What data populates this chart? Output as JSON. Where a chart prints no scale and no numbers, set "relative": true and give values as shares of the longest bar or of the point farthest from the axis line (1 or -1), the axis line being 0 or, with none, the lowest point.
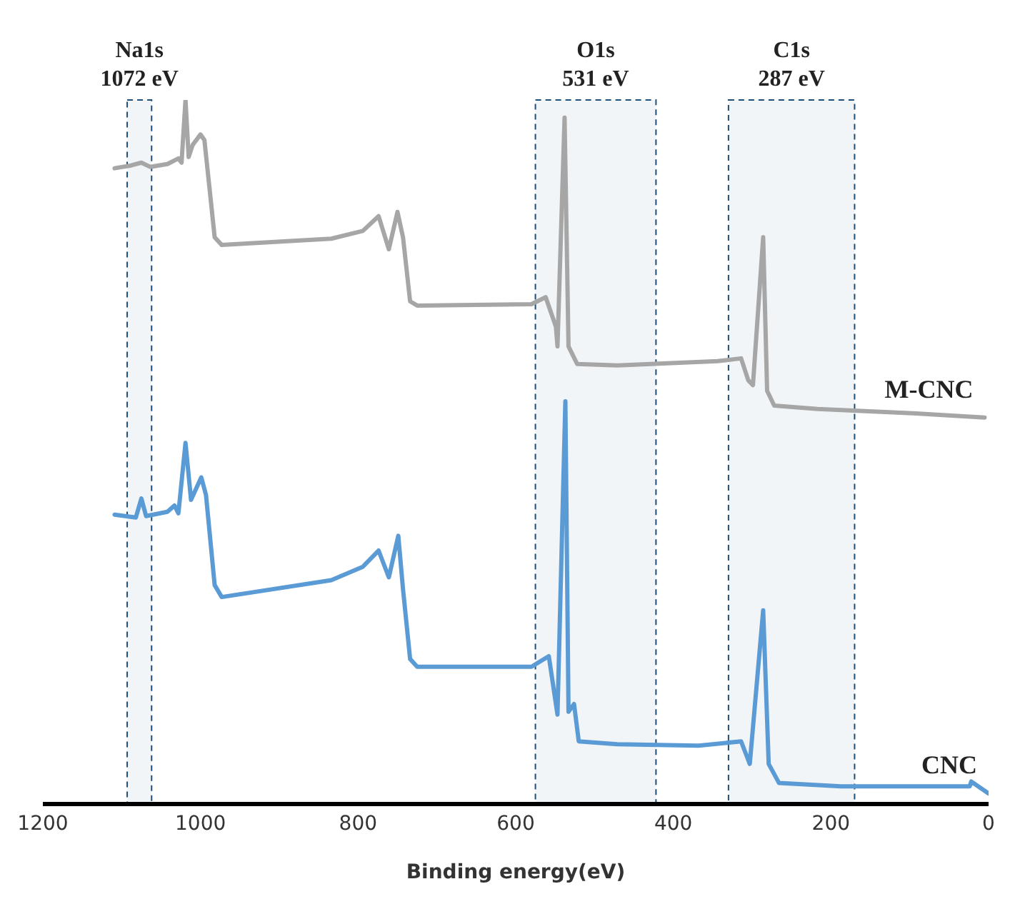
{
  "chart_data": {
    "type": "line",
    "xlabel": "Binding energy(eV)",
    "xlim": [
      1200,
      0
    ],
    "xticks": [
      1200,
      1000,
      800,
      600,
      400,
      200,
      0
    ],
    "relative": true,
    "legend": false,
    "grid": false,
    "marker": "none",
    "line_style": "solid",
    "bands": [
      {
        "axis": "x",
        "from": 1093,
        "to": 1062,
        "label": "Na1s 1072 eV",
        "color": "#1f4e79"
      },
      {
        "axis": "x",
        "from": 575,
        "to": 422,
        "label": "O1s 531 eV",
        "color": "#1f4e79"
      },
      {
        "axis": "x",
        "from": 330,
        "to": 170,
        "label": "C1s 287 eV",
        "color": "#1f4e79"
      }
    ],
    "series": [
      {
        "name": "M-CNC",
        "color": "#a6a6a6",
        "x": [
          1109,
          1088,
          1075,
          1064,
          1042,
          1028,
          1024,
          1019,
          1015,
          1010,
          1000,
          995,
          988,
          982,
          973,
          834,
          794,
          774,
          761,
          750,
          743,
          734,
          725,
          580,
          562,
          549,
          547,
          538,
          533,
          522,
          471,
          344,
          314,
          305,
          299,
          286,
          281,
          272,
          217,
          96,
          5
        ],
        "values": [
          0.903,
          0.907,
          0.911,
          0.905,
          0.909,
          0.917,
          0.911,
          1.0,
          0.919,
          0.936,
          0.951,
          0.943,
          0.869,
          0.805,
          0.794,
          0.803,
          0.814,
          0.835,
          0.788,
          0.841,
          0.805,
          0.714,
          0.708,
          0.71,
          0.72,
          0.678,
          0.65,
          0.975,
          0.65,
          0.625,
          0.623,
          0.629,
          0.633,
          0.602,
          0.595,
          0.805,
          0.587,
          0.566,
          0.561,
          0.555,
          0.549
        ]
      },
      {
        "name": "CNC",
        "color": "#5b9bd5",
        "x": [
          1109,
          1082,
          1075,
          1069,
          1042,
          1033,
          1028,
          1019,
          1012,
          999,
          993,
          982,
          973,
          834,
          794,
          774,
          761,
          749,
          743,
          734,
          725,
          580,
          558,
          547,
          537,
          533,
          526,
          520,
          471,
          368,
          314,
          303,
          286,
          279,
          266,
          187,
          24,
          22,
          0
        ],
        "values": [
          0.411,
          0.407,
          0.434,
          0.409,
          0.415,
          0.424,
          0.413,
          0.513,
          0.432,
          0.464,
          0.439,
          0.311,
          0.294,
          0.318,
          0.337,
          0.36,
          0.322,
          0.381,
          0.305,
          0.206,
          0.195,
          0.195,
          0.21,
          0.127,
          0.572,
          0.131,
          0.142,
          0.089,
          0.085,
          0.083,
          0.089,
          0.057,
          0.275,
          0.057,
          0.03,
          0.025,
          0.025,
          0.032,
          0.015
        ]
      }
    ]
  }
}
